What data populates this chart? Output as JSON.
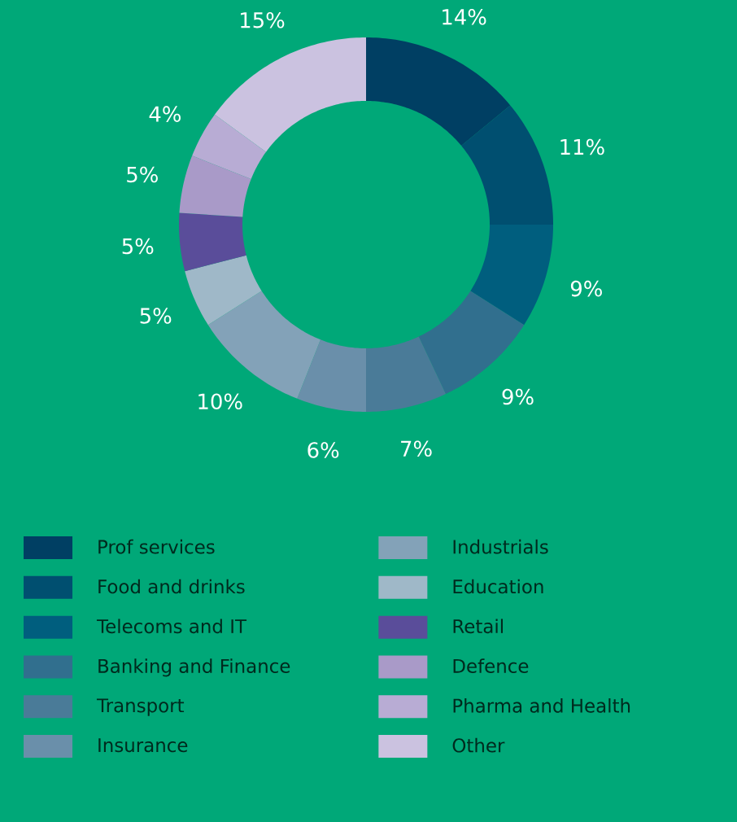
{
  "chart_data": {
    "type": "donut",
    "categories": [
      "Prof services",
      "Food and drinks",
      "Telecoms and IT",
      "Banking and Finance",
      "Transport",
      "Insurance",
      "Industrials",
      "Education",
      "Retail",
      "Defence",
      "Pharma and Health",
      "Other"
    ],
    "values": [
      14,
      11,
      9,
      9,
      7,
      6,
      10,
      5,
      5,
      5,
      4,
      15
    ],
    "value_labels": [
      "14%",
      "11%",
      "9%",
      "9%",
      "7%",
      "6%",
      "10%",
      "5%",
      "5%",
      "5%",
      "4%",
      "15%"
    ],
    "colors": [
      "#003f63",
      "#004f70",
      "#005e7e",
      "#316f8e",
      "#4a7b98",
      "#6a8faa",
      "#83a2b8",
      "#9fb8c8",
      "#5a4d9a",
      "#a99ac8",
      "#b8acd4",
      "#cbc2e0"
    ],
    "legend": "bottom"
  }
}
